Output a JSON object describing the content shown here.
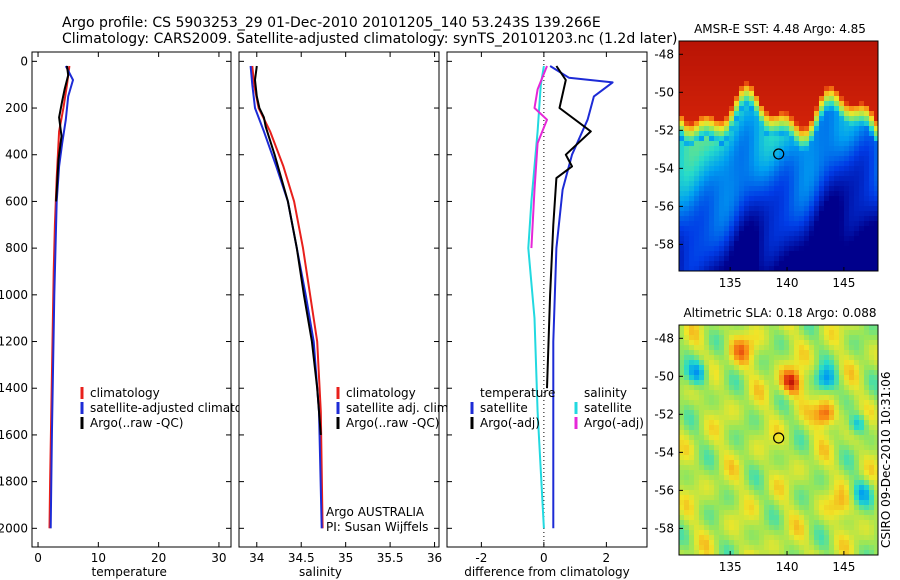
{
  "header": {
    "line1": "Argo profile: CS 5903253_29 01-Dec-2010 20101205_140 53.243S 139.266E",
    "line2": "Climatology: CARS2009. Satellite-adjusted climatology: synTS_20101203.nc (1.2d later)"
  },
  "colors": {
    "climatology": "#e8201c",
    "satellite": "#1d2bd6",
    "argo": "#000000",
    "sat_sal": "#22d9e0",
    "argo_adj": "#e627d8"
  },
  "chart_data": [
    {
      "id": "temperature",
      "type": "line",
      "xlabel": "temperature",
      "xlim": [
        -1,
        32
      ],
      "ylim": [
        2080,
        -40
      ],
      "xticks": [
        0,
        10,
        20,
        30
      ],
      "yticks": [
        0,
        200,
        400,
        600,
        800,
        1000,
        1200,
        1400,
        1600,
        1800,
        2000
      ],
      "legend": [
        "climatology",
        "satellite-adjusted climatology",
        "Argo(..raw -QC)"
      ],
      "series": [
        {
          "name": "climatology",
          "color": "#e8201c",
          "points": [
            [
              5.2,
              20
            ],
            [
              4.8,
              100
            ],
            [
              4.2,
              200
            ],
            [
              3.5,
              300
            ],
            [
              3.1,
              500
            ],
            [
              2.8,
              700
            ],
            [
              2.6,
              900
            ],
            [
              2.4,
              1200
            ],
            [
              2.2,
              1500
            ],
            [
              2.0,
              1800
            ],
            [
              1.9,
              2000
            ]
          ]
        },
        {
          "name": "satellite-adjusted climatology",
          "color": "#1d2bd6",
          "points": [
            [
              4.6,
              20
            ],
            [
              5.8,
              80
            ],
            [
              5.0,
              150
            ],
            [
              4.6,
              250
            ],
            [
              4.0,
              350
            ],
            [
              3.5,
              450
            ],
            [
              3.1,
              600
            ],
            [
              2.9,
              800
            ],
            [
              2.7,
              1000
            ],
            [
              2.5,
              1300
            ],
            [
              2.3,
              1600
            ],
            [
              2.1,
              2000
            ]
          ]
        },
        {
          "name": "Argo(..raw -QC)",
          "color": "#000000",
          "points": [
            [
              4.8,
              20
            ],
            [
              5.0,
              60
            ],
            [
              4.4,
              120
            ],
            [
              4.0,
              170
            ],
            [
              3.5,
              240
            ],
            [
              3.9,
              320
            ],
            [
              3.4,
              420
            ],
            [
              3.0,
              600
            ]
          ]
        }
      ]
    },
    {
      "id": "salinity",
      "type": "line",
      "xlabel": "salinity",
      "xlim": [
        33.8,
        36.05
      ],
      "ylim": [
        2080,
        -40
      ],
      "xticks": [
        34,
        34.5,
        35,
        35.5,
        36
      ],
      "yticks": [],
      "legend": [
        "climatology",
        "satellite adj. clim.",
        "Argo(..raw -QC)"
      ],
      "annotation": [
        "Argo AUSTRALIA",
        "PI: Susan Wijffels"
      ],
      "series": [
        {
          "name": "climatology",
          "color": "#e8201c",
          "points": [
            [
              33.95,
              20
            ],
            [
              33.97,
              100
            ],
            [
              34.02,
              200
            ],
            [
              34.15,
              300
            ],
            [
              34.3,
              450
            ],
            [
              34.42,
              600
            ],
            [
              34.52,
              800
            ],
            [
              34.6,
              1000
            ],
            [
              34.68,
              1200
            ],
            [
              34.72,
              1500
            ],
            [
              34.74,
              2000
            ]
          ]
        },
        {
          "name": "satellite adj. clim.",
          "color": "#1d2bd6",
          "points": [
            [
              33.93,
              20
            ],
            [
              33.95,
              100
            ],
            [
              33.98,
              200
            ],
            [
              34.08,
              300
            ],
            [
              34.22,
              450
            ],
            [
              34.35,
              600
            ],
            [
              34.45,
              800
            ],
            [
              34.55,
              1000
            ],
            [
              34.64,
              1200
            ],
            [
              34.7,
              1500
            ],
            [
              34.73,
              2000
            ]
          ]
        },
        {
          "name": "Argo(..raw -QC)",
          "color": "#000000",
          "points": [
            [
              34.0,
              20
            ],
            [
              33.98,
              80
            ],
            [
              34.0,
              150
            ],
            [
              34.03,
              200
            ],
            [
              34.08,
              240
            ],
            [
              34.1,
              280
            ],
            [
              34.2,
              400
            ],
            [
              34.35,
              600
            ],
            [
              34.45,
              800
            ],
            [
              34.53,
              1000
            ],
            [
              34.62,
              1200
            ],
            [
              34.68,
              1400
            ],
            [
              34.72,
              1600
            ]
          ]
        }
      ]
    },
    {
      "id": "difference",
      "type": "line",
      "xlabel": "difference from climatology",
      "xlim": [
        -3.1,
        3.3
      ],
      "ylim": [
        2080,
        -40
      ],
      "xticks": [
        -2,
        0,
        2
      ],
      "yticks": [],
      "legend": [
        "temperature",
        "satellite",
        "Argo(-adj)",
        "salinity",
        "satellite",
        "Argo(-adj)"
      ],
      "series": [
        {
          "name": "temperature satellite",
          "color": "#1d2bd6",
          "points": [
            [
              0.2,
              20
            ],
            [
              0.8,
              70
            ],
            [
              2.2,
              90
            ],
            [
              1.6,
              150
            ],
            [
              1.4,
              250
            ],
            [
              0.9,
              400
            ],
            [
              0.6,
              550
            ],
            [
              0.4,
              800
            ],
            [
              0.3,
              1200
            ],
            [
              0.3,
              1600
            ],
            [
              0.3,
              2000
            ]
          ]
        },
        {
          "name": "temperature Argo(-adj)",
          "color": "#000000",
          "points": [
            [
              0.4,
              20
            ],
            [
              0.7,
              80
            ],
            [
              0.5,
              200
            ],
            [
              1.5,
              300
            ],
            [
              0.7,
              400
            ],
            [
              0.9,
              450
            ],
            [
              0.4,
              500
            ],
            [
              0.3,
              700
            ],
            [
              0.2,
              1000
            ],
            [
              0.1,
              1400
            ]
          ]
        },
        {
          "name": "salinity satellite",
          "color": "#22d9e0",
          "points": [
            [
              0.0,
              20
            ],
            [
              -0.1,
              100
            ],
            [
              -0.2,
              300
            ],
            [
              -0.4,
              600
            ],
            [
              -0.5,
              800
            ],
            [
              -0.3,
              1100
            ],
            [
              -0.2,
              1500
            ],
            [
              0.0,
              2000
            ]
          ]
        },
        {
          "name": "salinity Argo(-adj)",
          "color": "#e627d8",
          "points": [
            [
              0.1,
              20
            ],
            [
              -0.2,
              120
            ],
            [
              -0.3,
              200
            ],
            [
              0.1,
              250
            ],
            [
              -0.2,
              350
            ],
            [
              -0.3,
              550
            ],
            [
              -0.4,
              800
            ]
          ]
        }
      ]
    }
  ],
  "maps": [
    {
      "id": "sst",
      "title": "AMSR-E SST: 4.48 Argo: 4.85",
      "xticks": [
        "135",
        "140",
        "145"
      ],
      "yticks": [
        "-48",
        "-50",
        "-52",
        "-54",
        "-56",
        "-58"
      ]
    },
    {
      "id": "sla",
      "title": "Altimetric SLA: 0.18 Argo: 0.088",
      "xticks": [
        "135",
        "140",
        "145"
      ],
      "yticks": [
        "-48",
        "-50",
        "-52",
        "-54",
        "-56",
        "-58"
      ]
    }
  ],
  "footer": {
    "credit": "CSIRO 09-Dec-2010 10:31:06"
  }
}
